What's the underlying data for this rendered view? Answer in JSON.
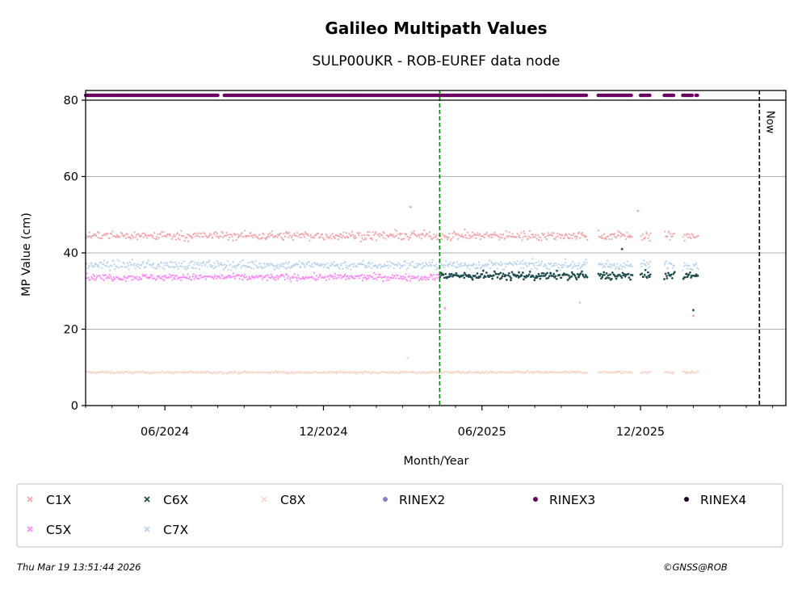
{
  "chart_data": {
    "type": "scatter",
    "title": "Galileo Multipath Values",
    "subtitle": "SULP00UKR - ROB-EUREF data node",
    "xlabel": "Month/Year",
    "ylabel": "MP Value (cm)",
    "x_range_months": [
      0.0,
      26.5
    ],
    "ylim": [
      0,
      80
    ],
    "yticks": [
      0,
      20,
      40,
      60,
      80
    ],
    "xticks": [
      {
        "label": "06/2024",
        "month": 3
      },
      {
        "label": "12/2024",
        "month": 9
      },
      {
        "label": "06/2025",
        "month": 15
      },
      {
        "label": "12/2025",
        "month": 21
      }
    ],
    "grid": "horizontal",
    "vertical_lines": [
      {
        "name": "rinex-change",
        "month": 13.4,
        "color": "#008000",
        "style": "dashed",
        "label": ""
      },
      {
        "name": "now",
        "month": 25.5,
        "color": "#000000",
        "style": "dashed",
        "label": "Now"
      }
    ],
    "rinex_strip": {
      "series": "RINEX3",
      "value": 81.3,
      "start_month": 0.0,
      "end_month": 23.2,
      "gaps": [
        [
          5.0,
          5.2
        ],
        [
          19.0,
          19.4
        ],
        [
          20.7,
          21.0
        ],
        [
          21.4,
          21.9
        ],
        [
          22.3,
          22.6
        ],
        [
          23.0,
          23.1
        ]
      ]
    },
    "series": [
      {
        "name": "C1X",
        "color": "#f4a6a6",
        "mean": 44.5,
        "spread": 1.1,
        "start_month": 0.0,
        "end_month": 23.2
      },
      {
        "name": "C5X",
        "color": "#ff88ff",
        "mean": 33.6,
        "spread": 0.8,
        "start_month": 0.0,
        "end_month": 13.4
      },
      {
        "name": "C6X",
        "color": "#1f4d4d",
        "mean": 34.0,
        "spread": 1.0,
        "start_month": 13.4,
        "end_month": 23.2
      },
      {
        "name": "C7X",
        "color": "#b8d4ee",
        "mean": 36.8,
        "spread": 1.1,
        "start_month": 0.0,
        "end_month": 23.2
      },
      {
        "name": "C8X",
        "color": "#f8d6cc",
        "mean": 8.7,
        "spread": 0.3,
        "start_month": 0.0,
        "end_month": 23.2
      }
    ],
    "data_gaps": [
      [
        19.0,
        19.4
      ],
      [
        20.7,
        21.0
      ],
      [
        21.4,
        21.9
      ],
      [
        22.3,
        22.6
      ]
    ],
    "outliers": [
      {
        "series": "C1X",
        "month": 12.3,
        "value": 52.0
      },
      {
        "series": "C1X",
        "month": 20.9,
        "value": 51.0
      },
      {
        "series": "C8X",
        "month": 12.2,
        "value": 12.5
      },
      {
        "series": "C5X",
        "month": 13.6,
        "value": 25.5
      },
      {
        "series": "C6X",
        "month": 23.0,
        "value": 25.0
      },
      {
        "series": "C5X",
        "month": 23.0,
        "value": 23.5
      },
      {
        "series": "C6X",
        "month": 20.3,
        "value": 41.0
      },
      {
        "series": "C7X",
        "month": 18.7,
        "value": 27.0
      }
    ],
    "legend": {
      "placement": "bottom",
      "columns": 6,
      "entries": [
        {
          "label": "C1X",
          "marker": "x",
          "color": "#f4a6a6"
        },
        {
          "label": "C6X",
          "marker": "x",
          "color": "#1f4d4d"
        },
        {
          "label": "C8X",
          "marker": "x",
          "color": "#f8d6cc"
        },
        {
          "label": "RINEX2",
          "marker": "dot",
          "color": "#8a7fc4"
        },
        {
          "label": "RINEX3",
          "marker": "dot",
          "color": "#6a0060"
        },
        {
          "label": "RINEX4",
          "marker": "dot",
          "color": "#1a0020"
        },
        {
          "label": "C5X",
          "marker": "x",
          "color": "#ff88ff"
        },
        {
          "label": "C7X",
          "marker": "x",
          "color": "#b8d4ee"
        }
      ]
    }
  },
  "footer": {
    "timestamp": "Thu Mar 19 13:51:44 2026",
    "copyright": "©GNSS@ROB"
  }
}
